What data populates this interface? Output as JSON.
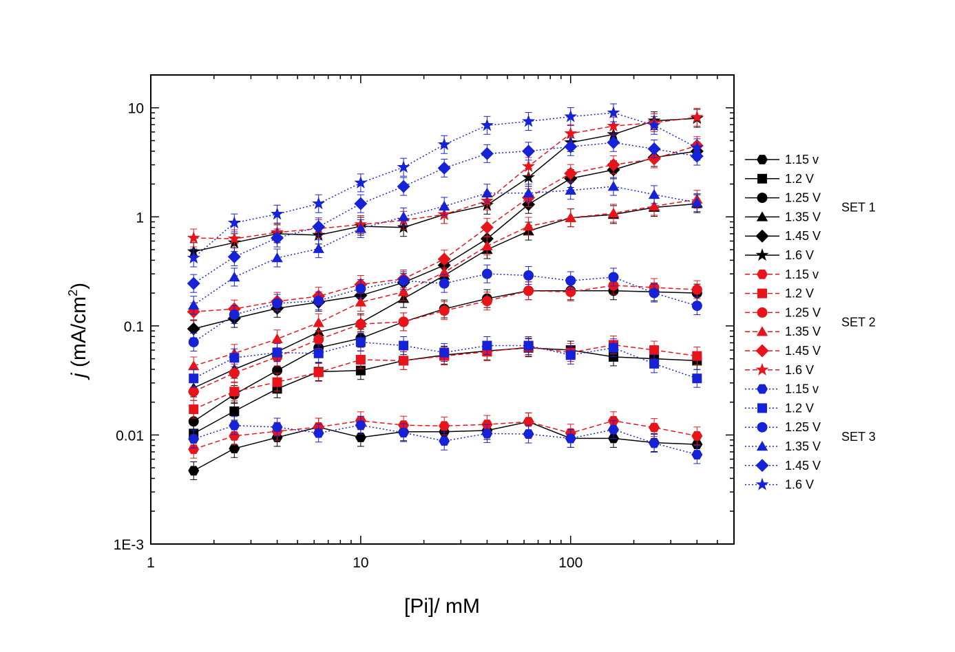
{
  "chart_data": {
    "type": "scatter",
    "title": "",
    "xlabel": "[Pi]/ mM",
    "ylabel_italic": "j",
    "ylabel_main": " (mA/cm",
    "ylabel_sup": "2",
    "ylabel_end": ")",
    "x_scale": "log",
    "y_scale": "log",
    "xlim": [
      1,
      600
    ],
    "ylim": [
      0.001,
      20
    ],
    "grid": false,
    "legend_position": "right",
    "x_ticks": [
      {
        "value": 1,
        "label": "1"
      },
      {
        "value": 10,
        "label": "10"
      },
      {
        "value": 100,
        "label": "100"
      }
    ],
    "y_ticks": [
      {
        "value": 0.001,
        "label": "1E-3"
      },
      {
        "value": 0.01,
        "label": "0.01"
      },
      {
        "value": 0.1,
        "label": "0.1"
      },
      {
        "value": 1,
        "label": "1"
      },
      {
        "value": 10,
        "label": "10"
      }
    ],
    "x": [
      1.6,
      2.5,
      4,
      6.3,
      10,
      16,
      25,
      40,
      63,
      100,
      160,
      250,
      400
    ],
    "sets": [
      {
        "label": "SET 1",
        "color": "#000000",
        "line_style": "solid",
        "series": [
          {
            "name": "1.15 v",
            "marker": "hexagon",
            "values": [
              0.0047,
              0.0075,
              0.0095,
              0.0118,
              0.0095,
              0.0107,
              0.0107,
              0.011,
              0.0132,
              0.0093,
              0.0093,
              0.0085,
              0.0082
            ]
          },
          {
            "name": "1.2 V",
            "marker": "square",
            "values": [
              0.0103,
              0.0165,
              0.0265,
              0.038,
              0.039,
              0.048,
              0.054,
              0.059,
              0.063,
              0.06,
              0.052,
              0.05,
              0.048
            ]
          },
          {
            "name": "1.25 V",
            "marker": "circle",
            "values": [
              0.0133,
              0.0235,
              0.039,
              0.063,
              0.077,
              0.109,
              0.143,
              0.178,
              0.21,
              0.21,
              0.21,
              0.205,
              0.2
            ]
          },
          {
            "name": "1.35 V",
            "marker": "triangle",
            "values": [
              0.027,
              0.04,
              0.058,
              0.088,
              0.107,
              0.178,
              0.29,
              0.5,
              0.74,
              0.98,
              1.05,
              1.22,
              1.32
            ]
          },
          {
            "name": "1.45 V",
            "marker": "diamond",
            "values": [
              0.094,
              0.117,
              0.145,
              0.165,
              0.19,
              0.25,
              0.36,
              0.63,
              1.3,
              2.25,
              2.7,
              3.5,
              4.0
            ]
          },
          {
            "name": "1.6 V",
            "marker": "star",
            "values": [
              0.48,
              0.58,
              0.7,
              0.68,
              0.82,
              0.8,
              1.05,
              1.28,
              2.3,
              4.8,
              5.7,
              7.6,
              8.0
            ]
          }
        ]
      },
      {
        "label": "SET 2",
        "color": "#e8141b",
        "line_style": "dashed",
        "series": [
          {
            "name": "1.15 v",
            "marker": "hexagon",
            "values": [
              0.0074,
              0.0098,
              0.0108,
              0.0118,
              0.0135,
              0.0123,
              0.0121,
              0.0125,
              0.0132,
              0.0104,
              0.0135,
              0.0117,
              0.0098
            ]
          },
          {
            "name": "1.2 V",
            "marker": "square",
            "values": [
              0.0172,
              0.025,
              0.0305,
              0.0375,
              0.049,
              0.048,
              0.053,
              0.058,
              0.064,
              0.057,
              0.067,
              0.06,
              0.053
            ]
          },
          {
            "name": "1.25 V",
            "marker": "circle",
            "values": [
              0.025,
              0.037,
              0.052,
              0.075,
              0.104,
              0.109,
              0.138,
              0.169,
              0.21,
              0.205,
              0.235,
              0.225,
              0.215
            ]
          },
          {
            "name": "1.35 V",
            "marker": "triangle",
            "values": [
              0.043,
              0.056,
              0.076,
              0.107,
              0.165,
              0.205,
              0.31,
              0.54,
              0.82,
              0.98,
              1.08,
              1.25,
              1.45
            ]
          },
          {
            "name": "1.45 V",
            "marker": "diamond",
            "values": [
              0.135,
              0.143,
              0.168,
              0.187,
              0.24,
              0.27,
              0.41,
              0.8,
              1.5,
              2.5,
              3.0,
              3.4,
              4.5
            ]
          },
          {
            "name": "1.6 V",
            "marker": "star",
            "values": [
              0.64,
              0.63,
              0.72,
              0.78,
              0.85,
              0.93,
              1.05,
              1.4,
              2.9,
              5.8,
              6.8,
              7.3,
              8.2
            ]
          }
        ]
      },
      {
        "label": "SET 3",
        "color": "#1622d6",
        "line_style": "dotted",
        "series": [
          {
            "name": "1.15 v",
            "marker": "hexagon",
            "values": [
              0.0092,
              0.0122,
              0.0118,
              0.0104,
              0.0123,
              0.0105,
              0.0088,
              0.0103,
              0.0102,
              0.0093,
              0.0112,
              0.0084,
              0.0066
            ]
          },
          {
            "name": "1.2 V",
            "marker": "square",
            "values": [
              0.033,
              0.051,
              0.057,
              0.056,
              0.071,
              0.066,
              0.057,
              0.066,
              0.066,
              0.054,
              0.063,
              0.045,
              0.033
            ]
          },
          {
            "name": "1.25 V",
            "marker": "circle",
            "values": [
              0.071,
              0.127,
              0.161,
              0.17,
              0.22,
              0.26,
              0.245,
              0.3,
              0.29,
              0.26,
              0.28,
              0.2,
              0.153
            ]
          },
          {
            "name": "1.35 V",
            "marker": "triangle",
            "values": [
              0.155,
              0.28,
              0.42,
              0.51,
              0.78,
              1.0,
              1.25,
              1.65,
              1.65,
              1.75,
              1.9,
              1.6,
              1.35
            ]
          },
          {
            "name": "1.45 V",
            "marker": "diamond",
            "values": [
              0.245,
              0.43,
              0.64,
              0.81,
              1.32,
              1.9,
              2.8,
              3.8,
              4.0,
              4.4,
              4.8,
              4.2,
              3.6
            ]
          },
          {
            "name": "1.6 V",
            "marker": "star",
            "values": [
              0.42,
              0.88,
              1.06,
              1.32,
              2.05,
              2.85,
              4.6,
              6.9,
              7.5,
              8.3,
              9.0,
              6.9,
              4.3
            ]
          }
        ]
      }
    ]
  }
}
